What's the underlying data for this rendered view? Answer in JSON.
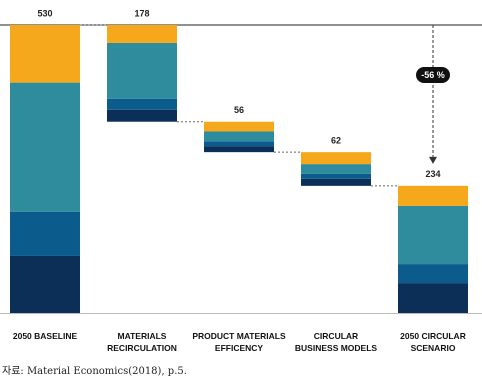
{
  "chart_data": {
    "type": "waterfall",
    "categories": [
      "2050 BASELINE",
      "MATERIALS\nRECIRCULATION",
      "PRODUCT MATERIALS\nEFFICENCY",
      "CIRCULAR\nBUSINESS MODELS",
      "2050 CIRCULAR\nSCENARIO"
    ],
    "totals": [
      530,
      178,
      56,
      62,
      234
    ],
    "series": [
      {
        "color": "#0c2f57",
        "values": [
          105,
          22,
          11,
          13,
          55
        ]
      },
      {
        "color": "#0b5b8c",
        "values": [
          81,
          20,
          9,
          9,
          35
        ]
      },
      {
        "color": "#2e8c9c",
        "values": [
          238,
          103,
          18,
          18,
          107
        ]
      },
      {
        "color": "#f5a81c",
        "values": [
          106,
          33,
          18,
          22,
          37
        ]
      }
    ],
    "annotation": "-56 %"
  },
  "source": "자료: Material Economics(2018), p.5."
}
